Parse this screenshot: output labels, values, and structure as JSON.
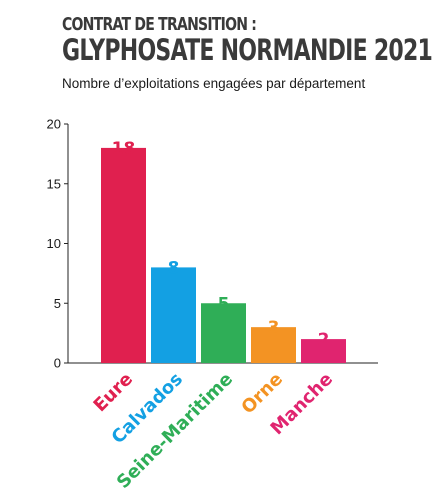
{
  "header": {
    "kicker": "CONTRAT DE TRANSITION :",
    "title": "GLYPHOSATE NORMANDIE 2021",
    "subtitle": "Nombre d’exploitations engagées par département"
  },
  "chart_data": {
    "type": "bar",
    "categories": [
      "Eure",
      "Calvados",
      "Seine-Maritime",
      "Orne",
      "Manche"
    ],
    "values": [
      18,
      8,
      5,
      3,
      2
    ],
    "value_labels": [
      "18",
      "8",
      "5",
      "3",
      "2"
    ],
    "colors": [
      "#e0204f",
      "#13a0e3",
      "#2fae57",
      "#f39323",
      "#e0246f"
    ],
    "ylim": [
      0,
      20
    ],
    "yticks": [
      "0",
      "5",
      "10",
      "15",
      "20"
    ],
    "grid": false,
    "legend": "none"
  }
}
